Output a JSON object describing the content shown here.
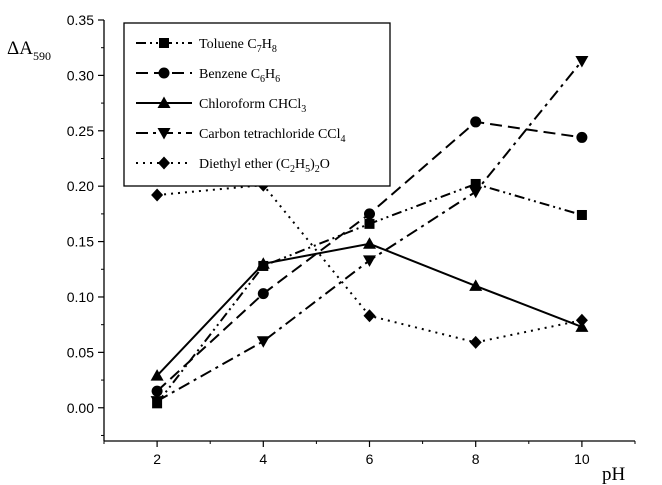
{
  "chart_data": {
    "type": "line",
    "title": "",
    "xlabel": "pH",
    "ylabel": {
      "main": "ΔA",
      "sub": "590"
    },
    "x": [
      2,
      4,
      6,
      8,
      10
    ],
    "xlim": [
      1,
      11
    ],
    "ylim": [
      -0.03,
      0.35
    ],
    "xticks": [
      "2",
      "4",
      "6",
      "8",
      "10"
    ],
    "yticks": [
      "0.00",
      "0.05",
      "0.10",
      "0.15",
      "0.20",
      "0.25",
      "0.30",
      "0.35"
    ],
    "grid": false,
    "legend_position": "top-left",
    "series": [
      {
        "name": "Toluene C7H8",
        "legend": [
          {
            "t": "Toluene C"
          },
          {
            "t": "7",
            "sub": true
          },
          {
            "t": "H"
          },
          {
            "t": "8",
            "sub": true
          }
        ],
        "values": [
          0.004,
          0.128,
          0.166,
          0.202,
          0.174
        ],
        "dash": "dash-dot-dot",
        "marker": "square"
      },
      {
        "name": "Benzene C6H6",
        "legend": [
          {
            "t": "Benzene C"
          },
          {
            "t": "6",
            "sub": true
          },
          {
            "t": "H"
          },
          {
            "t": "6",
            "sub": true
          }
        ],
        "values": [
          0.015,
          0.103,
          0.175,
          0.258,
          0.244
        ],
        "dash": "dash",
        "marker": "circle"
      },
      {
        "name": "Chloroform CHCl3",
        "legend": [
          {
            "t": "Chloroform CHCl"
          },
          {
            "t": "3",
            "sub": true
          }
        ],
        "values": [
          0.029,
          0.13,
          0.148,
          0.11,
          0.073
        ],
        "dash": "solid",
        "marker": "triangle-up"
      },
      {
        "name": "Carbon tetrachloride CCl4",
        "legend": [
          {
            "t": "Carbon tetrachloride CCl"
          },
          {
            "t": "4",
            "sub": true
          }
        ],
        "values": [
          0.006,
          0.06,
          0.133,
          0.195,
          0.313
        ],
        "dash": "dash-dot",
        "marker": "triangle-down"
      },
      {
        "name": "Diethyl ether (C2H5)2O",
        "legend": [
          {
            "t": "Diethyl ether (C"
          },
          {
            "t": "2",
            "sub": true
          },
          {
            "t": "H"
          },
          {
            "t": "5",
            "sub": true
          },
          {
            "t": ")"
          },
          {
            "t": "2",
            "sub": true
          },
          {
            "t": "O"
          }
        ],
        "values": [
          0.192,
          0.201,
          0.083,
          0.059,
          0.079
        ],
        "dash": "dot",
        "marker": "diamond"
      }
    ]
  }
}
